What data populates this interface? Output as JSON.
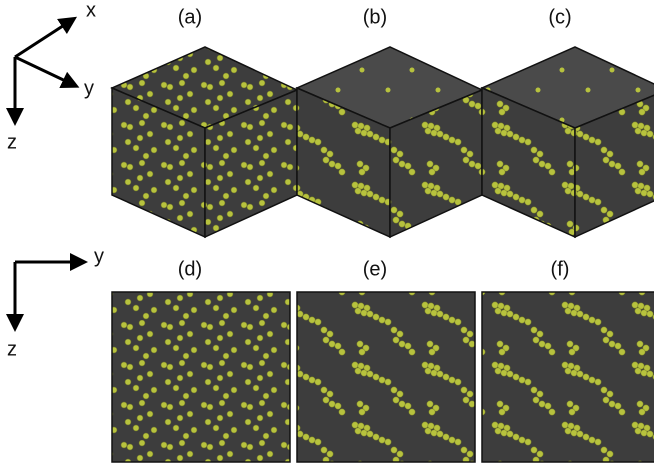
{
  "panels": [
    "(a)",
    "(b)",
    "(c)",
    "(d)",
    "(e)",
    "(f)"
  ],
  "axes_top": {
    "x": "x",
    "y": "y",
    "z": "z"
  },
  "axes_bottom": {
    "y": "y",
    "z": "z"
  }
}
